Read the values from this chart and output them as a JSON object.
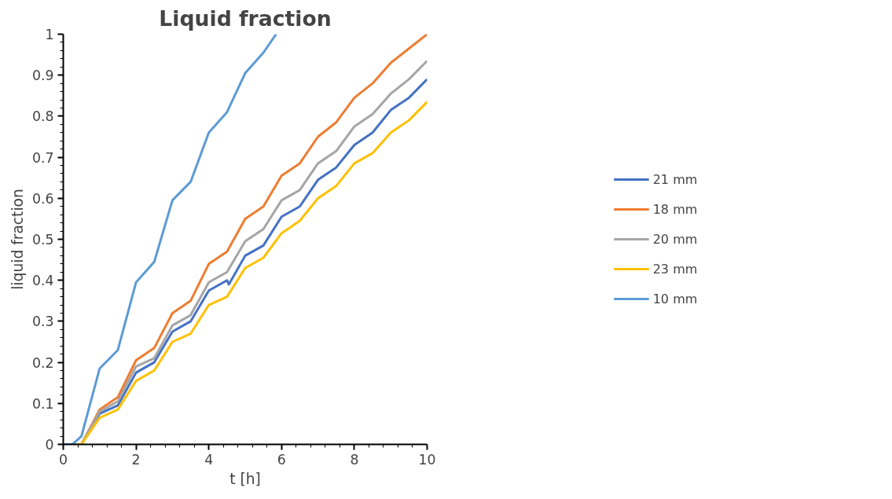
{
  "chart_data": {
    "type": "line",
    "title": "Liquid fraction",
    "xlabel": "t [h]",
    "ylabel": "liquid fraction",
    "xlim": [
      0,
      10
    ],
    "ylim": [
      0,
      1
    ],
    "xticks": [
      0,
      2,
      4,
      6,
      8,
      10
    ],
    "yticks": [
      0,
      0.1,
      0.2,
      0.3,
      0.4,
      0.5,
      0.6,
      0.7,
      0.8,
      0.9,
      1
    ],
    "grid": false,
    "legend": "right",
    "marker": "none",
    "line_style": "solid",
    "series": [
      {
        "name": "21 mm",
        "color": "#4472c4",
        "x": [
          0,
          0.25,
          0.5,
          1,
          1.5,
          2,
          2.5,
          3,
          3.5,
          4,
          4.5,
          4.55,
          5,
          5.5,
          6,
          6.5,
          7,
          7.5,
          8,
          8.5,
          9,
          9.5,
          10
        ],
        "values": [
          0,
          0,
          0,
          0.075,
          0.095,
          0.175,
          0.2,
          0.275,
          0.3,
          0.375,
          0.4,
          0.39,
          0.46,
          0.485,
          0.555,
          0.58,
          0.645,
          0.675,
          0.73,
          0.76,
          0.815,
          0.845,
          0.89
        ]
      },
      {
        "name": "18 mm",
        "color": "#ed7d31",
        "x": [
          0,
          0.25,
          0.5,
          1,
          1.5,
          2,
          2.5,
          3,
          3.5,
          4,
          4.5,
          5,
          5.5,
          6,
          6.5,
          7,
          7.5,
          8,
          8.5,
          9,
          9.5,
          10
        ],
        "values": [
          0,
          0,
          0,
          0.085,
          0.115,
          0.205,
          0.235,
          0.32,
          0.35,
          0.44,
          0.47,
          0.55,
          0.58,
          0.655,
          0.685,
          0.75,
          0.785,
          0.845,
          0.88,
          0.93,
          0.965,
          1.0
        ]
      },
      {
        "name": "20 mm",
        "color": "#a5a5a5",
        "x": [
          0,
          0.25,
          0.5,
          1,
          1.5,
          2,
          2.5,
          3,
          3.5,
          4,
          4.5,
          5,
          5.5,
          6,
          6.5,
          7,
          7.5,
          8,
          8.5,
          9,
          9.5,
          10
        ],
        "values": [
          0,
          0,
          0,
          0.08,
          0.105,
          0.19,
          0.21,
          0.29,
          0.315,
          0.395,
          0.42,
          0.495,
          0.525,
          0.595,
          0.62,
          0.685,
          0.715,
          0.775,
          0.805,
          0.855,
          0.89,
          0.935
        ]
      },
      {
        "name": "23 mm",
        "color": "#ffc000",
        "x": [
          0,
          0.25,
          0.5,
          1,
          1.5,
          2,
          2.5,
          3,
          3.5,
          4,
          4.5,
          5,
          5.5,
          6,
          6.5,
          7,
          7.5,
          8,
          8.5,
          9,
          9.5,
          10
        ],
        "values": [
          0,
          0,
          0,
          0.065,
          0.085,
          0.155,
          0.18,
          0.25,
          0.27,
          0.34,
          0.36,
          0.43,
          0.455,
          0.515,
          0.545,
          0.6,
          0.63,
          0.685,
          0.71,
          0.76,
          0.79,
          0.835
        ]
      },
      {
        "name": "10 mm",
        "color": "#5b9bd5",
        "x": [
          0,
          0.25,
          0.5,
          1,
          1.5,
          2,
          2.5,
          3,
          3.5,
          4,
          4.5,
          5,
          5.5,
          5.85
        ],
        "values": [
          0,
          0,
          0.02,
          0.185,
          0.23,
          0.395,
          0.445,
          0.595,
          0.64,
          0.76,
          0.81,
          0.905,
          0.955,
          1.0
        ]
      }
    ]
  }
}
